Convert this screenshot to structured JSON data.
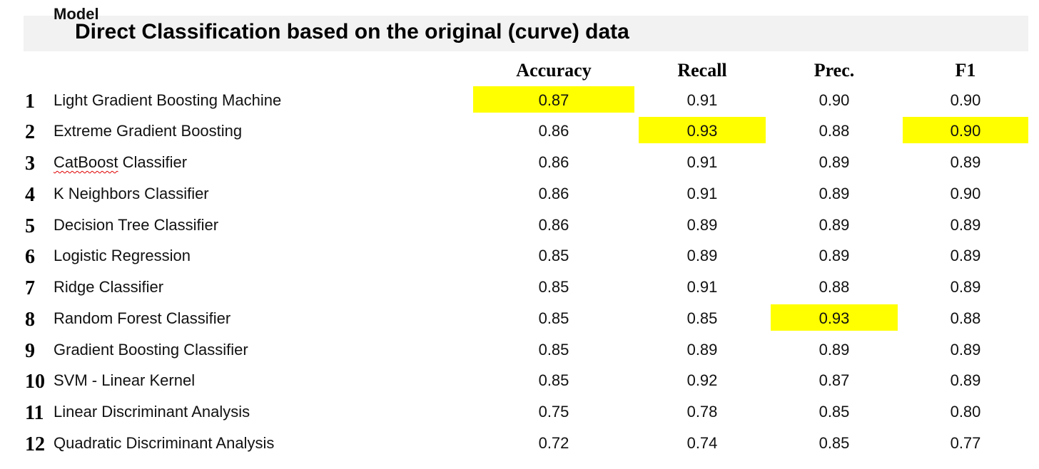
{
  "title": "Direct Classification based on the original (curve) data",
  "headers": {
    "model": "Model",
    "accuracy": "Accuracy",
    "recall": "Recall",
    "prec": "Prec.",
    "f1": "F1"
  },
  "highlight_color": "#ffff00",
  "rows": [
    {
      "rank": "1",
      "model": "Light Gradient Boosting Machine",
      "accuracy": "0.87",
      "recall": "0.91",
      "prec": "0.90",
      "f1": "0.90",
      "highlight": [
        "accuracy"
      ]
    },
    {
      "rank": "2",
      "model": "Extreme Gradient Boosting",
      "accuracy": "0.86",
      "recall": "0.93",
      "prec": "0.88",
      "f1": "0.90",
      "highlight": [
        "recall",
        "f1"
      ]
    },
    {
      "rank": "3",
      "model_part1": "CatBoost",
      "model_part2": " Classifier",
      "model": "CatBoost Classifier",
      "accuracy": "0.86",
      "recall": "0.91",
      "prec": "0.89",
      "f1": "0.89",
      "highlight": []
    },
    {
      "rank": "4",
      "model": "K Neighbors Classifier",
      "accuracy": "0.86",
      "recall": "0.91",
      "prec": "0.89",
      "f1": "0.90",
      "highlight": []
    },
    {
      "rank": "5",
      "model": "Decision Tree Classifier",
      "accuracy": "0.86",
      "recall": "0.89",
      "prec": "0.89",
      "f1": "0.89",
      "highlight": []
    },
    {
      "rank": "6",
      "model": "Logistic Regression",
      "accuracy": "0.85",
      "recall": "0.89",
      "prec": "0.89",
      "f1": "0.89",
      "highlight": []
    },
    {
      "rank": "7",
      "model": "Ridge Classifier",
      "accuracy": "0.85",
      "recall": "0.91",
      "prec": "0.88",
      "f1": "0.89",
      "highlight": []
    },
    {
      "rank": "8",
      "model": "Random Forest Classifier",
      "accuracy": "0.85",
      "recall": "0.85",
      "prec": "0.93",
      "f1": "0.88",
      "highlight": [
        "prec"
      ]
    },
    {
      "rank": "9",
      "model": "Gradient Boosting Classifier",
      "accuracy": "0.85",
      "recall": "0.89",
      "prec": "0.89",
      "f1": "0.89",
      "highlight": []
    },
    {
      "rank": "10",
      "model": "SVM - Linear Kernel",
      "accuracy": "0.85",
      "recall": "0.92",
      "prec": "0.87",
      "f1": "0.89",
      "highlight": []
    },
    {
      "rank": "11",
      "model": "Linear Discriminant Analysis",
      "accuracy": "0.75",
      "recall": "0.78",
      "prec": "0.85",
      "f1": "0.80",
      "highlight": []
    },
    {
      "rank": "12",
      "model": "Quadratic Discriminant Analysis",
      "accuracy": "0.72",
      "recall": "0.74",
      "prec": "0.85",
      "f1": "0.77",
      "highlight": []
    }
  ]
}
